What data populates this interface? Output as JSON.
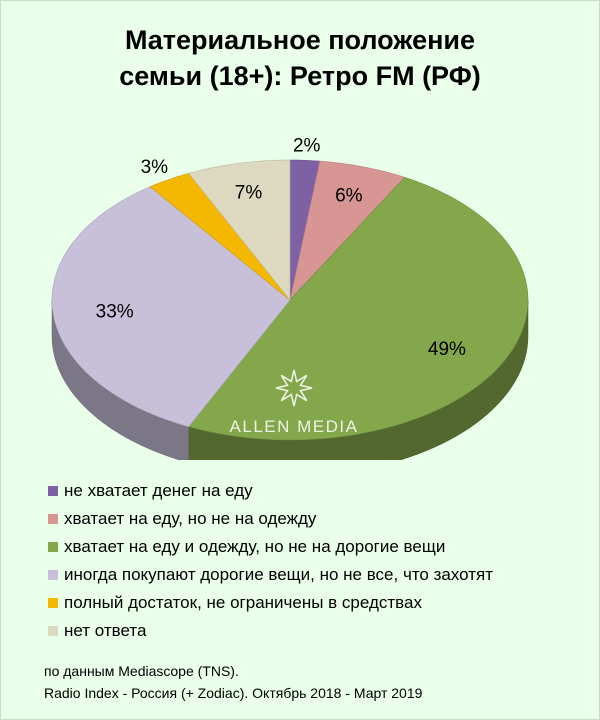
{
  "chart_data": {
    "type": "pie",
    "title_lines": [
      "Материальное положение",
      "семьи (18+): Ретро FM (РФ)"
    ],
    "slices": [
      {
        "label": "не хватает денег на еду",
        "value": 2,
        "data_label": "2%",
        "color": "#7e61a5"
      },
      {
        "label": "хватает на еду, но не на одежду",
        "value": 6,
        "data_label": "6%",
        "color": "#d79594"
      },
      {
        "label": "хватает на еду и одежду, но не на дорогие вещи",
        "value": 49,
        "data_label": "49%",
        "color": "#84a74c"
      },
      {
        "label": "иногда покупают дорогие вещи, но не все, что захотят",
        "value": 33,
        "data_label": "33%",
        "color": "#c8c0d9"
      },
      {
        "label": "полный достаток, не ограничены в средствах",
        "value": 3,
        "data_label": "3%",
        "color": "#f5b800"
      },
      {
        "label": "нет ответа",
        "value": 7,
        "data_label": "7%",
        "color": "#dcd9c0"
      }
    ],
    "legend_position": "bottom-left",
    "style": "3d"
  },
  "watermark": "ALLEN MEDIA",
  "source_lines": [
    "по данным Mediascope (TNS).",
    "Radio Index - Россия (+ Zodiac). Октябрь 2018 - Март 2019"
  ]
}
